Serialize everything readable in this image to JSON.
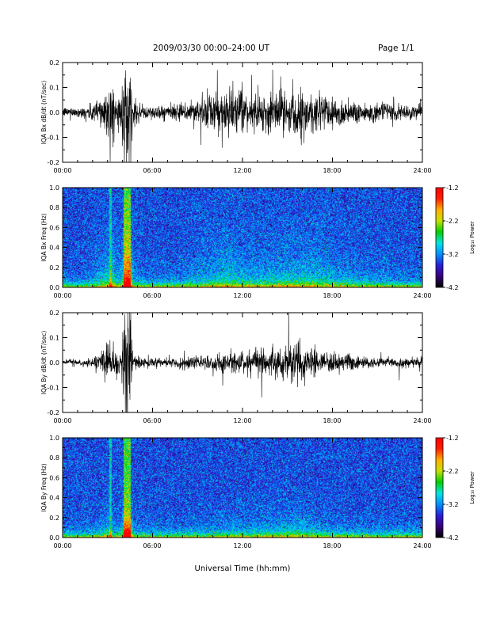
{
  "header": {
    "title": "2009/03/30  00:00–24:00 UT",
    "page": "Page 1/1"
  },
  "side_note": "",
  "chart_data": [
    {
      "type": "line",
      "panel": "bx-dbdt",
      "ylabel": "IQA Bx dB/dt (nT/sec)",
      "ylim": [
        -0.2,
        0.2
      ],
      "yticks": [
        "0.2",
        "0.1",
        "0.0",
        "-0.1",
        "-0.2"
      ],
      "ytick_values": [
        0.2,
        0.1,
        0.0,
        -0.1,
        -0.2
      ],
      "xticks": [
        "00:00",
        "06:00",
        "12:00",
        "18:00",
        "24:00"
      ],
      "xlim": [
        0,
        24
      ],
      "envelope": [
        [
          0.0,
          0.02
        ],
        [
          1.0,
          0.02
        ],
        [
          2.0,
          0.04
        ],
        [
          2.5,
          0.08
        ],
        [
          3.0,
          0.1
        ],
        [
          3.3,
          0.14
        ],
        [
          3.6,
          0.06
        ],
        [
          3.9,
          0.08
        ],
        [
          4.1,
          0.22
        ],
        [
          4.5,
          0.22
        ],
        [
          4.7,
          0.05
        ],
        [
          5.5,
          0.03
        ],
        [
          6.5,
          0.03
        ],
        [
          7.5,
          0.03
        ],
        [
          8.5,
          0.05
        ],
        [
          9.5,
          0.07
        ],
        [
          10.5,
          0.09
        ],
        [
          11.0,
          0.11
        ],
        [
          11.5,
          0.09
        ],
        [
          12.5,
          0.07
        ],
        [
          13.5,
          0.08
        ],
        [
          14.5,
          0.09
        ],
        [
          15.5,
          0.09
        ],
        [
          16.5,
          0.1
        ],
        [
          17.5,
          0.08
        ],
        [
          18.5,
          0.06
        ],
        [
          19.5,
          0.05
        ],
        [
          21.0,
          0.04
        ],
        [
          22.5,
          0.03
        ],
        [
          24.0,
          0.03
        ]
      ]
    },
    {
      "type": "heatmap",
      "panel": "bx-spectrogram",
      "ylabel": "IQA Bx Freq (Hz)",
      "ylim": [
        0.0,
        1.0
      ],
      "yticks": [
        "1.0",
        "0.8",
        "0.6",
        "0.4",
        "0.2",
        "0.0"
      ],
      "ytick_values": [
        1.0,
        0.8,
        0.6,
        0.4,
        0.2,
        0.0
      ],
      "xticks": [
        "00:00",
        "06:00",
        "12:00",
        "18:00",
        "24:00"
      ],
      "xlim": [
        0,
        24
      ],
      "colorbar": {
        "label": "Log₁₀ Power",
        "ticks": [
          "-1.2",
          "-2.2",
          "-3.2",
          "-4.2"
        ],
        "tick_values": [
          -1.2,
          -2.2,
          -3.2,
          -4.2
        ],
        "range": [
          -4.2,
          -1.2
        ],
        "colors": [
          "#000000",
          "#3a007a",
          "#2a1fd6",
          "#0090ff",
          "#00e5e5",
          "#00d000",
          "#c8e000",
          "#ffb000",
          "#ff2000",
          "#ff0000"
        ]
      }
    },
    {
      "type": "line",
      "panel": "by-dbdt",
      "ylabel": "IQA By dB/dt (nT/sec)",
      "ylim": [
        -0.2,
        0.2
      ],
      "yticks": [
        "0.2",
        "0.1",
        "0.0",
        "-0.1",
        "-0.2"
      ],
      "ytick_values": [
        0.2,
        0.1,
        0.0,
        -0.1,
        -0.2
      ],
      "xticks": [
        "00:00",
        "06:00",
        "12:00",
        "18:00",
        "24:00"
      ],
      "xlim": [
        0,
        24
      ],
      "envelope": [
        [
          0.0,
          0.01
        ],
        [
          1.0,
          0.01
        ],
        [
          2.0,
          0.02
        ],
        [
          2.5,
          0.05
        ],
        [
          3.0,
          0.09
        ],
        [
          3.3,
          0.07
        ],
        [
          3.6,
          0.05
        ],
        [
          3.9,
          0.06
        ],
        [
          4.1,
          0.23
        ],
        [
          4.5,
          0.23
        ],
        [
          4.7,
          0.03
        ],
        [
          5.5,
          0.02
        ],
        [
          6.5,
          0.02
        ],
        [
          7.5,
          0.02
        ],
        [
          8.5,
          0.03
        ],
        [
          9.5,
          0.03
        ],
        [
          10.5,
          0.04
        ],
        [
          11.5,
          0.05
        ],
        [
          12.5,
          0.05
        ],
        [
          13.5,
          0.06
        ],
        [
          14.5,
          0.07
        ],
        [
          15.5,
          0.08
        ],
        [
          16.5,
          0.07
        ],
        [
          17.5,
          0.04
        ],
        [
          18.5,
          0.04
        ],
        [
          19.5,
          0.03
        ],
        [
          21.0,
          0.02
        ],
        [
          22.5,
          0.02
        ],
        [
          24.0,
          0.02
        ]
      ]
    },
    {
      "type": "heatmap",
      "panel": "by-spectrogram",
      "ylabel": "IQA By Freq (Hz)",
      "ylim": [
        0.0,
        1.0
      ],
      "yticks": [
        "1.0",
        "0.8",
        "0.6",
        "0.4",
        "0.2",
        "0.0"
      ],
      "ytick_values": [
        1.0,
        0.8,
        0.6,
        0.4,
        0.2,
        0.0
      ],
      "xticks": [
        "00:00",
        "06:00",
        "12:00",
        "18:00",
        "24:00"
      ],
      "xlabel": "Universal Time (hh:mm)",
      "xlim": [
        0,
        24
      ],
      "colorbar": {
        "label": "Log₁₀ Power",
        "ticks": [
          "-1.2",
          "-2.2",
          "-3.2",
          "-4.2"
        ],
        "tick_values": [
          -1.2,
          -2.2,
          -3.2,
          -4.2
        ],
        "range": [
          -4.2,
          -1.2
        ],
        "colors": [
          "#000000",
          "#3a007a",
          "#2a1fd6",
          "#0090ff",
          "#00e5e5",
          "#00d000",
          "#c8e000",
          "#ffb000",
          "#ff2000",
          "#ff0000"
        ]
      }
    }
  ]
}
